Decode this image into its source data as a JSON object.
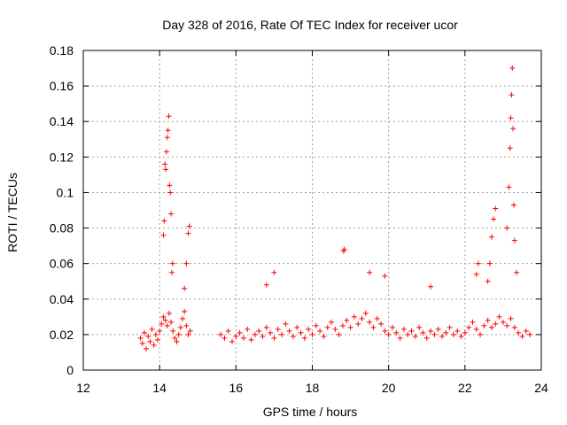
{
  "chart_data": {
    "type": "scatter",
    "title": "Day 328 of 2016, Rate Of TEC Index for receiver ucor",
    "xlabel": "GPS time / hours",
    "ylabel": "ROTI / TECUs",
    "xlim": [
      12,
      24
    ],
    "ylim": [
      0,
      0.18
    ],
    "xticks": [
      12,
      14,
      16,
      18,
      20,
      22,
      24
    ],
    "yticks": [
      0,
      0.02,
      0.04,
      0.06,
      0.08,
      0.1,
      0.12,
      0.14,
      0.16,
      0.18
    ],
    "xtick_labels": [
      "12",
      "14",
      "16",
      "18",
      "20",
      "22",
      "24"
    ],
    "ytick_labels": [
      "0",
      "0.02",
      "0.04",
      "0.06",
      "0.08",
      "0.1",
      "0.12",
      "0.14",
      "0.16",
      "0.18"
    ],
    "grid": true,
    "marker": "+",
    "color": "#ff0000",
    "series": [
      {
        "name": "ROTI",
        "x": [
          13.5,
          13.55,
          13.6,
          13.65,
          13.7,
          13.75,
          13.8,
          13.85,
          13.9,
          13.95,
          14.0,
          14.05,
          14.1,
          14.15,
          14.2,
          14.25,
          14.3,
          14.35,
          14.4,
          14.45,
          14.5,
          14.55,
          14.6,
          14.65,
          14.7,
          14.75,
          14.8,
          14.1,
          14.12,
          14.14,
          14.16,
          14.18,
          14.2,
          14.22,
          14.24,
          14.26,
          14.28,
          14.3,
          14.32,
          14.34,
          14.65,
          14.7,
          14.75,
          14.78,
          15.6,
          15.7,
          15.8,
          15.9,
          16.0,
          16.1,
          16.2,
          16.3,
          16.4,
          16.5,
          16.6,
          16.7,
          16.8,
          16.9,
          17.0,
          17.1,
          17.2,
          17.3,
          17.4,
          17.5,
          17.6,
          17.7,
          17.8,
          17.9,
          18.0,
          18.1,
          18.2,
          18.3,
          18.4,
          18.5,
          18.6,
          18.7,
          18.8,
          18.9,
          19.0,
          19.1,
          19.2,
          19.3,
          19.4,
          19.5,
          19.6,
          19.7,
          19.8,
          19.9,
          20.0,
          20.1,
          20.2,
          20.3,
          20.4,
          20.5,
          20.6,
          20.7,
          20.8,
          20.9,
          21.0,
          21.1,
          21.2,
          21.3,
          21.4,
          21.5,
          21.6,
          21.7,
          21.8,
          21.9,
          22.0,
          22.1,
          22.2,
          22.3,
          22.4,
          22.5,
          22.6,
          22.7,
          22.8,
          22.9,
          23.0,
          23.1,
          23.2,
          23.3,
          23.4,
          23.5,
          23.6,
          23.7,
          22.6,
          22.65,
          22.7,
          22.75,
          22.8,
          23.1,
          23.15,
          23.18,
          23.2,
          23.22,
          23.24,
          23.26,
          23.28,
          23.3,
          23.35,
          18.82,
          18.84,
          17.0,
          16.8,
          19.5,
          19.9,
          22.35,
          22.3,
          21.1
        ],
        "y": [
          0.018,
          0.015,
          0.021,
          0.012,
          0.019,
          0.016,
          0.023,
          0.014,
          0.02,
          0.017,
          0.022,
          0.026,
          0.03,
          0.028,
          0.025,
          0.032,
          0.027,
          0.022,
          0.018,
          0.016,
          0.02,
          0.024,
          0.029,
          0.033,
          0.025,
          0.02,
          0.022,
          0.076,
          0.084,
          0.116,
          0.113,
          0.123,
          0.131,
          0.135,
          0.143,
          0.104,
          0.1,
          0.088,
          0.055,
          0.06,
          0.046,
          0.06,
          0.077,
          0.081,
          0.02,
          0.018,
          0.022,
          0.016,
          0.019,
          0.021,
          0.018,
          0.023,
          0.017,
          0.02,
          0.022,
          0.019,
          0.024,
          0.021,
          0.018,
          0.023,
          0.02,
          0.026,
          0.022,
          0.019,
          0.024,
          0.021,
          0.018,
          0.023,
          0.02,
          0.025,
          0.022,
          0.019,
          0.024,
          0.027,
          0.023,
          0.02,
          0.025,
          0.028,
          0.024,
          0.03,
          0.026,
          0.029,
          0.032,
          0.027,
          0.024,
          0.029,
          0.026,
          0.022,
          0.02,
          0.024,
          0.021,
          0.018,
          0.023,
          0.02,
          0.022,
          0.019,
          0.024,
          0.021,
          0.018,
          0.022,
          0.02,
          0.023,
          0.019,
          0.021,
          0.024,
          0.02,
          0.022,
          0.019,
          0.021,
          0.024,
          0.027,
          0.023,
          0.02,
          0.025,
          0.028,
          0.024,
          0.026,
          0.03,
          0.027,
          0.025,
          0.029,
          0.024,
          0.021,
          0.019,
          0.022,
          0.02,
          0.05,
          0.06,
          0.075,
          0.085,
          0.091,
          0.08,
          0.103,
          0.125,
          0.142,
          0.155,
          0.17,
          0.136,
          0.093,
          0.073,
          0.055,
          0.067,
          0.068,
          0.055,
          0.048,
          0.055,
          0.053,
          0.06,
          0.054,
          0.047
        ]
      }
    ]
  }
}
